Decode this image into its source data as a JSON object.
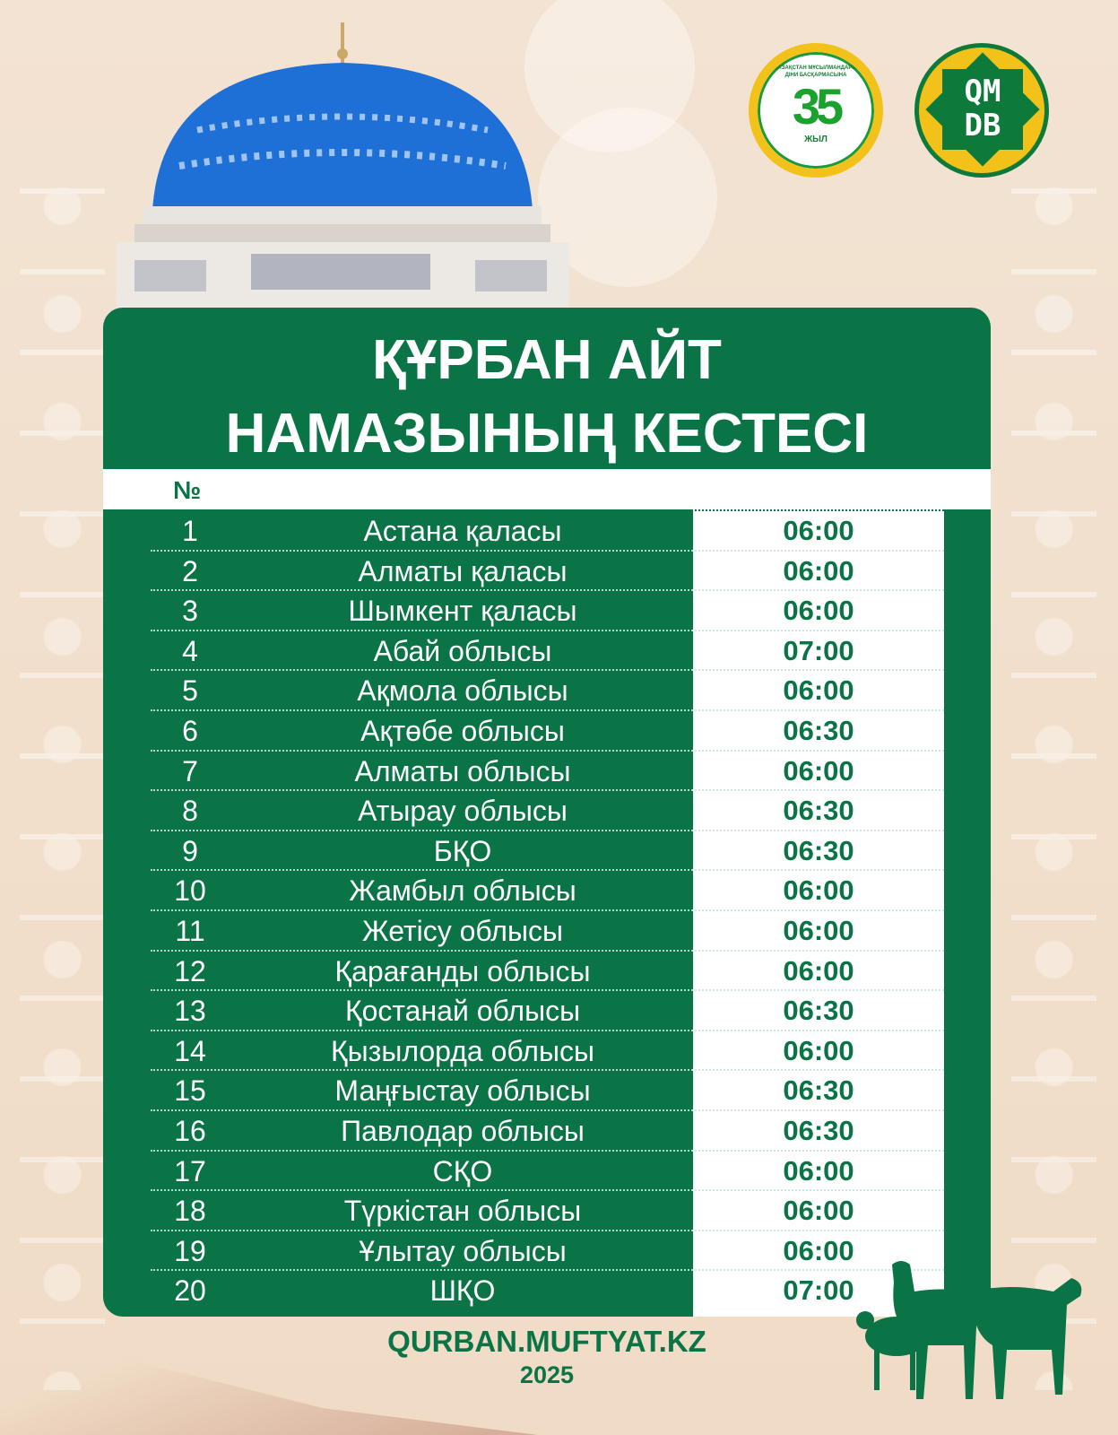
{
  "logos": {
    "anniversary": {
      "text": "ҚАЗАҚСТАН МҰСЫЛМАНДАРЫ ДІНИ БАСҚАРМАСЫНА",
      "number": "35",
      "unit": "ЖЫЛ"
    },
    "qmdb": "QMDB"
  },
  "title": {
    "line1": "ҚҰРБАН АЙТ",
    "line2": "НАМАЗЫНЫҢ КЕСТЕСІ"
  },
  "table": {
    "header_no": "№",
    "rows": [
      {
        "no": "1",
        "name": "Астана қаласы",
        "time": "06:00"
      },
      {
        "no": "2",
        "name": "Алматы қаласы",
        "time": "06:00"
      },
      {
        "no": "3",
        "name": "Шымкент қаласы",
        "time": "06:00"
      },
      {
        "no": "4",
        "name": "Абай облысы",
        "time": "07:00"
      },
      {
        "no": "5",
        "name": "Ақмола облысы",
        "time": "06:00"
      },
      {
        "no": "6",
        "name": "Ақтөбе облысы",
        "time": "06:30"
      },
      {
        "no": "7",
        "name": "Алматы облысы",
        "time": "06:00"
      },
      {
        "no": "8",
        "name": "Атырау облысы",
        "time": "06:30"
      },
      {
        "no": "9",
        "name": "БҚО",
        "time": "06:30"
      },
      {
        "no": "10",
        "name": "Жамбыл облысы",
        "time": "06:00"
      },
      {
        "no": "11",
        "name": "Жетісу облысы",
        "time": "06:00"
      },
      {
        "no": "12",
        "name": "Қарағанды облысы",
        "time": "06:00"
      },
      {
        "no": "13",
        "name": "Қостанай облысы",
        "time": "06:30"
      },
      {
        "no": "14",
        "name": "Қызылорда облысы",
        "time": "06:00"
      },
      {
        "no": "15",
        "name": "Маңғыстау облысы",
        "time": "06:30"
      },
      {
        "no": "16",
        "name": "Павлодар облысы",
        "time": "06:30"
      },
      {
        "no": "17",
        "name": "СҚО",
        "time": "06:00"
      },
      {
        "no": "18",
        "name": "Түркістан облысы",
        "time": "06:00"
      },
      {
        "no": "19",
        "name": "Ұлытау облысы",
        "time": "06:00"
      },
      {
        "no": "20",
        "name": "ШҚО",
        "time": "07:00"
      }
    ]
  },
  "footer": {
    "site": "QURBAN.MUFTYAT.KZ",
    "year": "2025"
  },
  "colors": {
    "green": "#0b7446",
    "background": "#f3e3d3",
    "dome": "#1e6fd6",
    "gold": "#f2c21b"
  }
}
